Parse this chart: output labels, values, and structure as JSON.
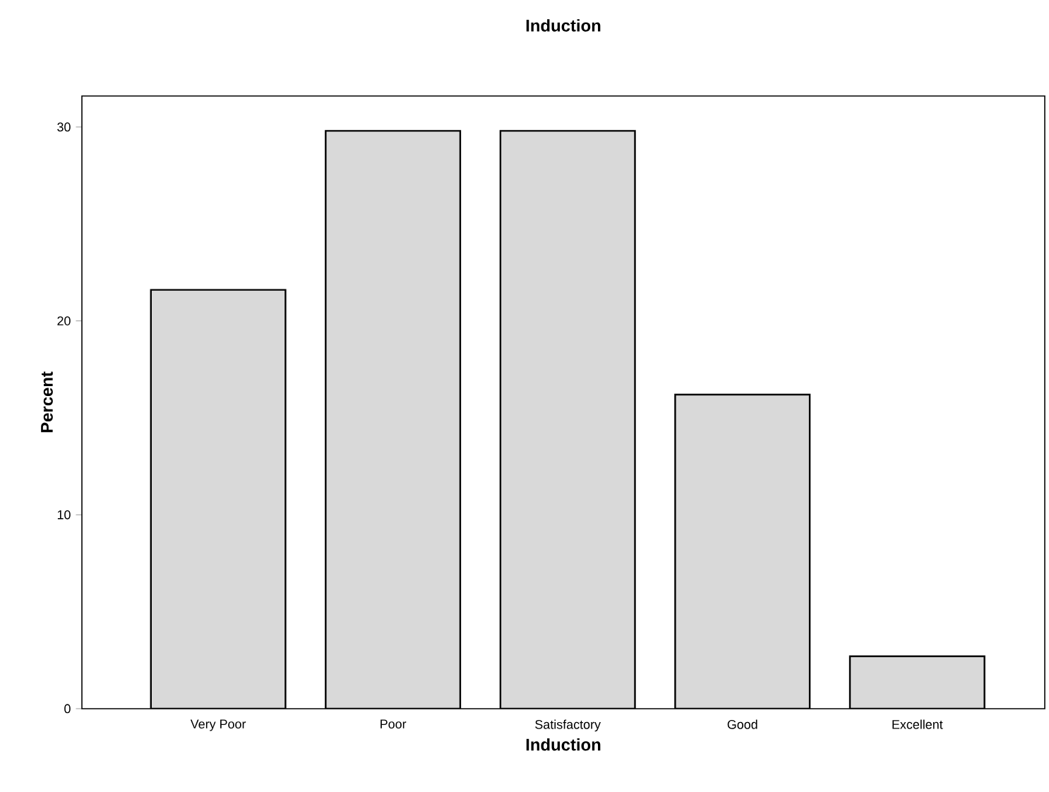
{
  "chart_data": {
    "type": "bar",
    "title": "Induction",
    "xlabel": "Induction",
    "ylabel": "Percent",
    "categories": [
      "Very Poor",
      "Poor",
      "Satisfactory",
      "Good",
      "Excellent"
    ],
    "values": [
      21.6,
      29.8,
      29.8,
      16.2,
      2.7
    ],
    "color": "#d9d9d9",
    "ylim": [
      0,
      31.6
    ],
    "yticks": [
      0,
      10,
      20,
      30
    ],
    "grid": false
  }
}
